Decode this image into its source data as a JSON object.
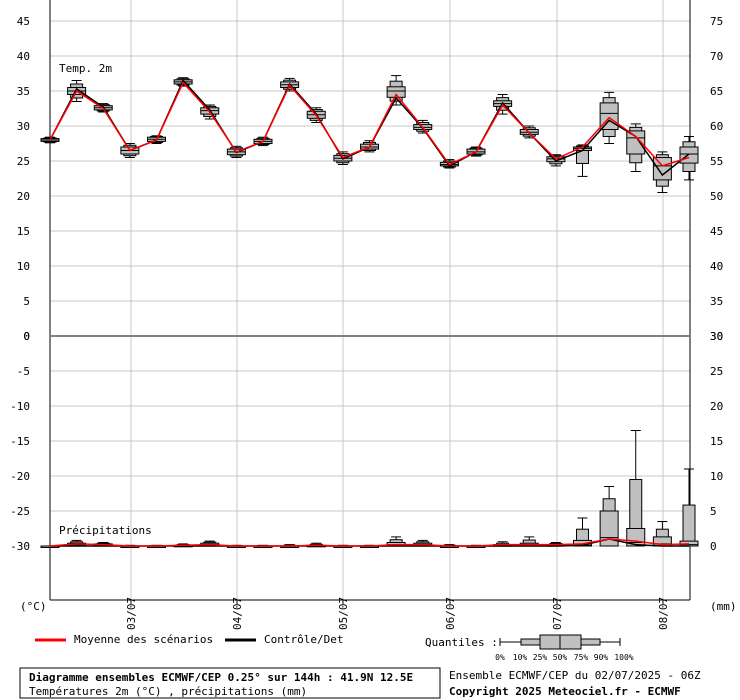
{
  "chart_data": {
    "type": "line",
    "temperature_panel": {
      "label": "Temp. 2m",
      "unit_left": "(°C)",
      "ylim_left": [
        0,
        45
      ],
      "ylim_right": [
        30,
        75
      ],
      "ticks_left": [
        "45",
        "40",
        "35",
        "30",
        "25",
        "20",
        "15",
        "10",
        "5",
        "0"
      ],
      "ticks_right": [
        "75",
        "70",
        "65",
        "60",
        "55",
        "50",
        "45",
        "40",
        "35",
        "30"
      ],
      "mean": [
        28.0,
        35.0,
        32.5,
        26.5,
        28.0,
        36.2,
        32.0,
        26.3,
        27.8,
        35.8,
        31.5,
        25.5,
        27.0,
        34.5,
        29.8,
        24.5,
        26.3,
        33.0,
        29.0,
        25.3,
        27.0,
        31.2,
        28.5,
        24.3,
        25.5
      ],
      "control": [
        28.0,
        35.3,
        32.7,
        26.5,
        28.0,
        36.5,
        32.3,
        26.2,
        27.8,
        36.0,
        31.7,
        25.3,
        27.0,
        34.0,
        29.7,
        24.3,
        26.3,
        33.3,
        29.0,
        25.0,
        26.5,
        30.8,
        28.5,
        23.0,
        26.0
      ],
      "boxes": [
        [
          27.6,
          27.8,
          28.0,
          28.2,
          28.4
        ],
        [
          33.5,
          34.5,
          35.0,
          35.5,
          36.5
        ],
        [
          32.0,
          32.3,
          32.6,
          32.9,
          33.2
        ],
        [
          25.5,
          26.0,
          26.5,
          27.0,
          27.5
        ],
        [
          27.5,
          27.8,
          28.1,
          28.4,
          28.6
        ],
        [
          35.7,
          36.0,
          36.3,
          36.6,
          36.9
        ],
        [
          31.0,
          31.7,
          32.2,
          32.6,
          33.0
        ],
        [
          25.5,
          25.9,
          26.3,
          26.7,
          27.1
        ],
        [
          27.2,
          27.5,
          27.8,
          28.1,
          28.4
        ],
        [
          35.0,
          35.5,
          35.9,
          36.3,
          36.8
        ],
        [
          30.5,
          31.1,
          31.6,
          32.1,
          32.6
        ],
        [
          24.5,
          25.0,
          25.4,
          25.8,
          26.3
        ],
        [
          26.3,
          26.7,
          27.0,
          27.4,
          27.9
        ],
        [
          33.0,
          34.1,
          35.0,
          35.6,
          37.2
        ],
        [
          29.0,
          29.5,
          29.8,
          30.2,
          30.8
        ],
        [
          24.0,
          24.3,
          24.5,
          24.8,
          25.2
        ],
        [
          25.7,
          26.0,
          26.3,
          26.7,
          27.0
        ],
        [
          31.7,
          32.8,
          33.2,
          33.6,
          34.5
        ],
        [
          28.3,
          28.8,
          29.1,
          29.5,
          30.0
        ],
        [
          24.3,
          24.9,
          25.3,
          25.6,
          25.9
        ],
        [
          22.8,
          26.5,
          26.8,
          27.0,
          27.3
        ],
        [
          27.5,
          29.5,
          31.8,
          33.3,
          34.8
        ],
        [
          23.5,
          26.0,
          28.3,
          29.3,
          30.3
        ],
        [
          20.5,
          22.3,
          24.3,
          25.5,
          26.3
        ],
        [
          22.3,
          24.7,
          26.0,
          27.0,
          28.5
        ]
      ]
    },
    "precip_panel": {
      "label": "Précipitations",
      "unit_right": "(mm)",
      "ylim_left": [
        -30,
        0
      ],
      "ylim_right": [
        0,
        30
      ],
      "ticks_left": [
        "0",
        "-5",
        "-10",
        "-15",
        "-20",
        "-25",
        "-30"
      ],
      "ticks_right": [
        "30",
        "25",
        "20",
        "15",
        "10",
        "5",
        "0"
      ],
      "mean": [
        0,
        0.3,
        0.2,
        0,
        0,
        0.1,
        0.2,
        0,
        0,
        0,
        0.1,
        0,
        0,
        0.2,
        0.2,
        0,
        0,
        0.2,
        0.2,
        0.2,
        0.3,
        1.0,
        0.7,
        0.2,
        0.3
      ],
      "control": [
        0,
        0,
        0,
        0,
        0,
        0,
        0,
        0,
        0,
        0,
        0,
        0,
        0,
        0,
        0,
        0,
        0,
        0,
        0,
        0,
        0.1,
        1.0,
        0.2,
        0,
        0
      ],
      "boxes": [
        [
          0,
          0,
          0,
          0,
          0
        ],
        [
          0,
          0.1,
          0.2,
          0.4,
          0.8
        ],
        [
          0,
          0.1,
          0.2,
          0.3,
          0.5
        ],
        [
          0,
          0,
          0,
          0,
          0.1
        ],
        [
          0,
          0,
          0,
          0,
          0.1
        ],
        [
          0,
          0,
          0,
          0.1,
          0.3
        ],
        [
          0,
          0.1,
          0.2,
          0.4,
          0.7
        ],
        [
          0,
          0,
          0,
          0,
          0.1
        ],
        [
          0,
          0,
          0,
          0,
          0.1
        ],
        [
          0,
          0,
          0,
          0,
          0.2
        ],
        [
          0,
          0,
          0,
          0.1,
          0.4
        ],
        [
          0,
          0,
          0,
          0,
          0.1
        ],
        [
          0,
          0,
          0,
          0,
          0.1
        ],
        [
          0,
          0,
          0.2,
          0.5,
          1.3
        ],
        [
          0,
          0,
          0.2,
          0.4,
          0.8
        ],
        [
          0,
          0,
          0,
          0,
          0.2
        ],
        [
          0,
          0,
          0,
          0,
          0.1
        ],
        [
          0,
          0,
          0.1,
          0.2,
          0.6
        ],
        [
          0,
          0,
          0.2,
          0.4,
          1.3
        ],
        [
          0,
          0,
          0.1,
          0.2,
          0.5
        ],
        [
          0,
          0,
          0.1,
          0.8,
          4.0
        ],
        [
          0,
          0,
          1.2,
          5.0,
          8.5
        ],
        [
          0,
          0,
          0.5,
          2.5,
          16.5
        ],
        [
          0,
          0,
          0.3,
          1.3,
          3.5
        ],
        [
          0,
          0,
          0.2,
          0.7,
          11.0
        ]
      ]
    },
    "x_axis": {
      "tick_labels": [
        "03/07",
        "04/07",
        "05/07",
        "06/07",
        "07/07",
        "08/07"
      ]
    },
    "legend": {
      "mean_label": "Moyenne des scénarios",
      "control_label": "Contrôle/Det",
      "quantiles_label": "Quantiles :",
      "quantile_ticks": [
        "0%",
        "10%",
        "25%",
        "50%",
        "75%",
        "90%",
        "100%"
      ],
      "mean_color": "#ff0000",
      "control_color": "#000000"
    },
    "footer": {
      "title_line1": "Diagramme ensembles ECMWF/CEP 0.25° sur 144h : 41.9N 12.5E",
      "title_line2": "Températures 2m (°C) , précipitations (mm)",
      "run_info": "Ensemble ECMWF/CEP du 02/07/2025 - 06Z",
      "copyright": "Copyright 2025 Meteociel.fr - ECMWF"
    }
  }
}
